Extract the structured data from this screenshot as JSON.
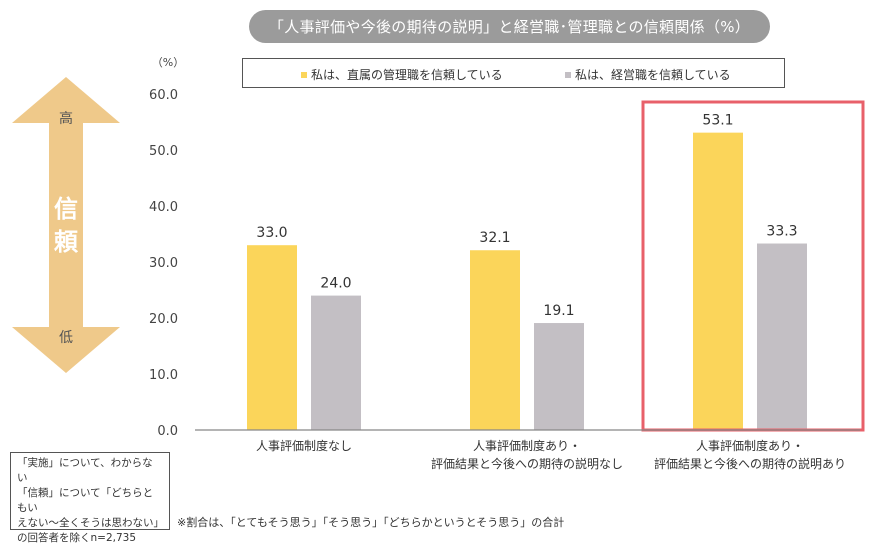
{
  "title": "「人事評価や今後の期待の説明」と経営職･管理職との信頼関係（%）",
  "legend": [
    {
      "label": "私は、直属の管理職を信頼している",
      "color": "#fbd55a"
    },
    {
      "label": "私は、経営職を信頼している",
      "color": "#c3bfc4"
    }
  ],
  "trust_arrow": {
    "title": "信頼",
    "high": "高",
    "low": "低",
    "color": "#efc98a"
  },
  "note": [
    "「実施」について、わからない",
    "「信頼」について「どちらともい",
    "えない～全くそうは思わない」",
    "の回答者を除くn=2,735"
  ],
  "footnote": "※割合は、「とてもそう思う」「そう思う」「どちらかというとそう思う」の合計",
  "highlight_color": "#e8606a",
  "chart_data": {
    "type": "bar",
    "ylabel": "（%）",
    "ylim": [
      0,
      60
    ],
    "yticks": [
      "0.0",
      "10.0",
      "20.0",
      "30.0",
      "40.0",
      "50.0",
      "60.0"
    ],
    "categories": [
      [
        "人事評価制度なし"
      ],
      [
        "人事評価制度あり・",
        "評価結果と今後への期待の説明なし"
      ],
      [
        "人事評価制度あり・",
        "評価結果と今後への期待の説明あり"
      ]
    ],
    "series": [
      {
        "name": "私は、直属の管理職を信頼している",
        "values": [
          33.0,
          32.1,
          53.1
        ],
        "color": "#fbd55a"
      },
      {
        "name": "私は、経営職を信頼している",
        "values": [
          24.0,
          19.1,
          33.3
        ],
        "color": "#c3bfc4"
      }
    ],
    "highlighted_category": 2
  }
}
